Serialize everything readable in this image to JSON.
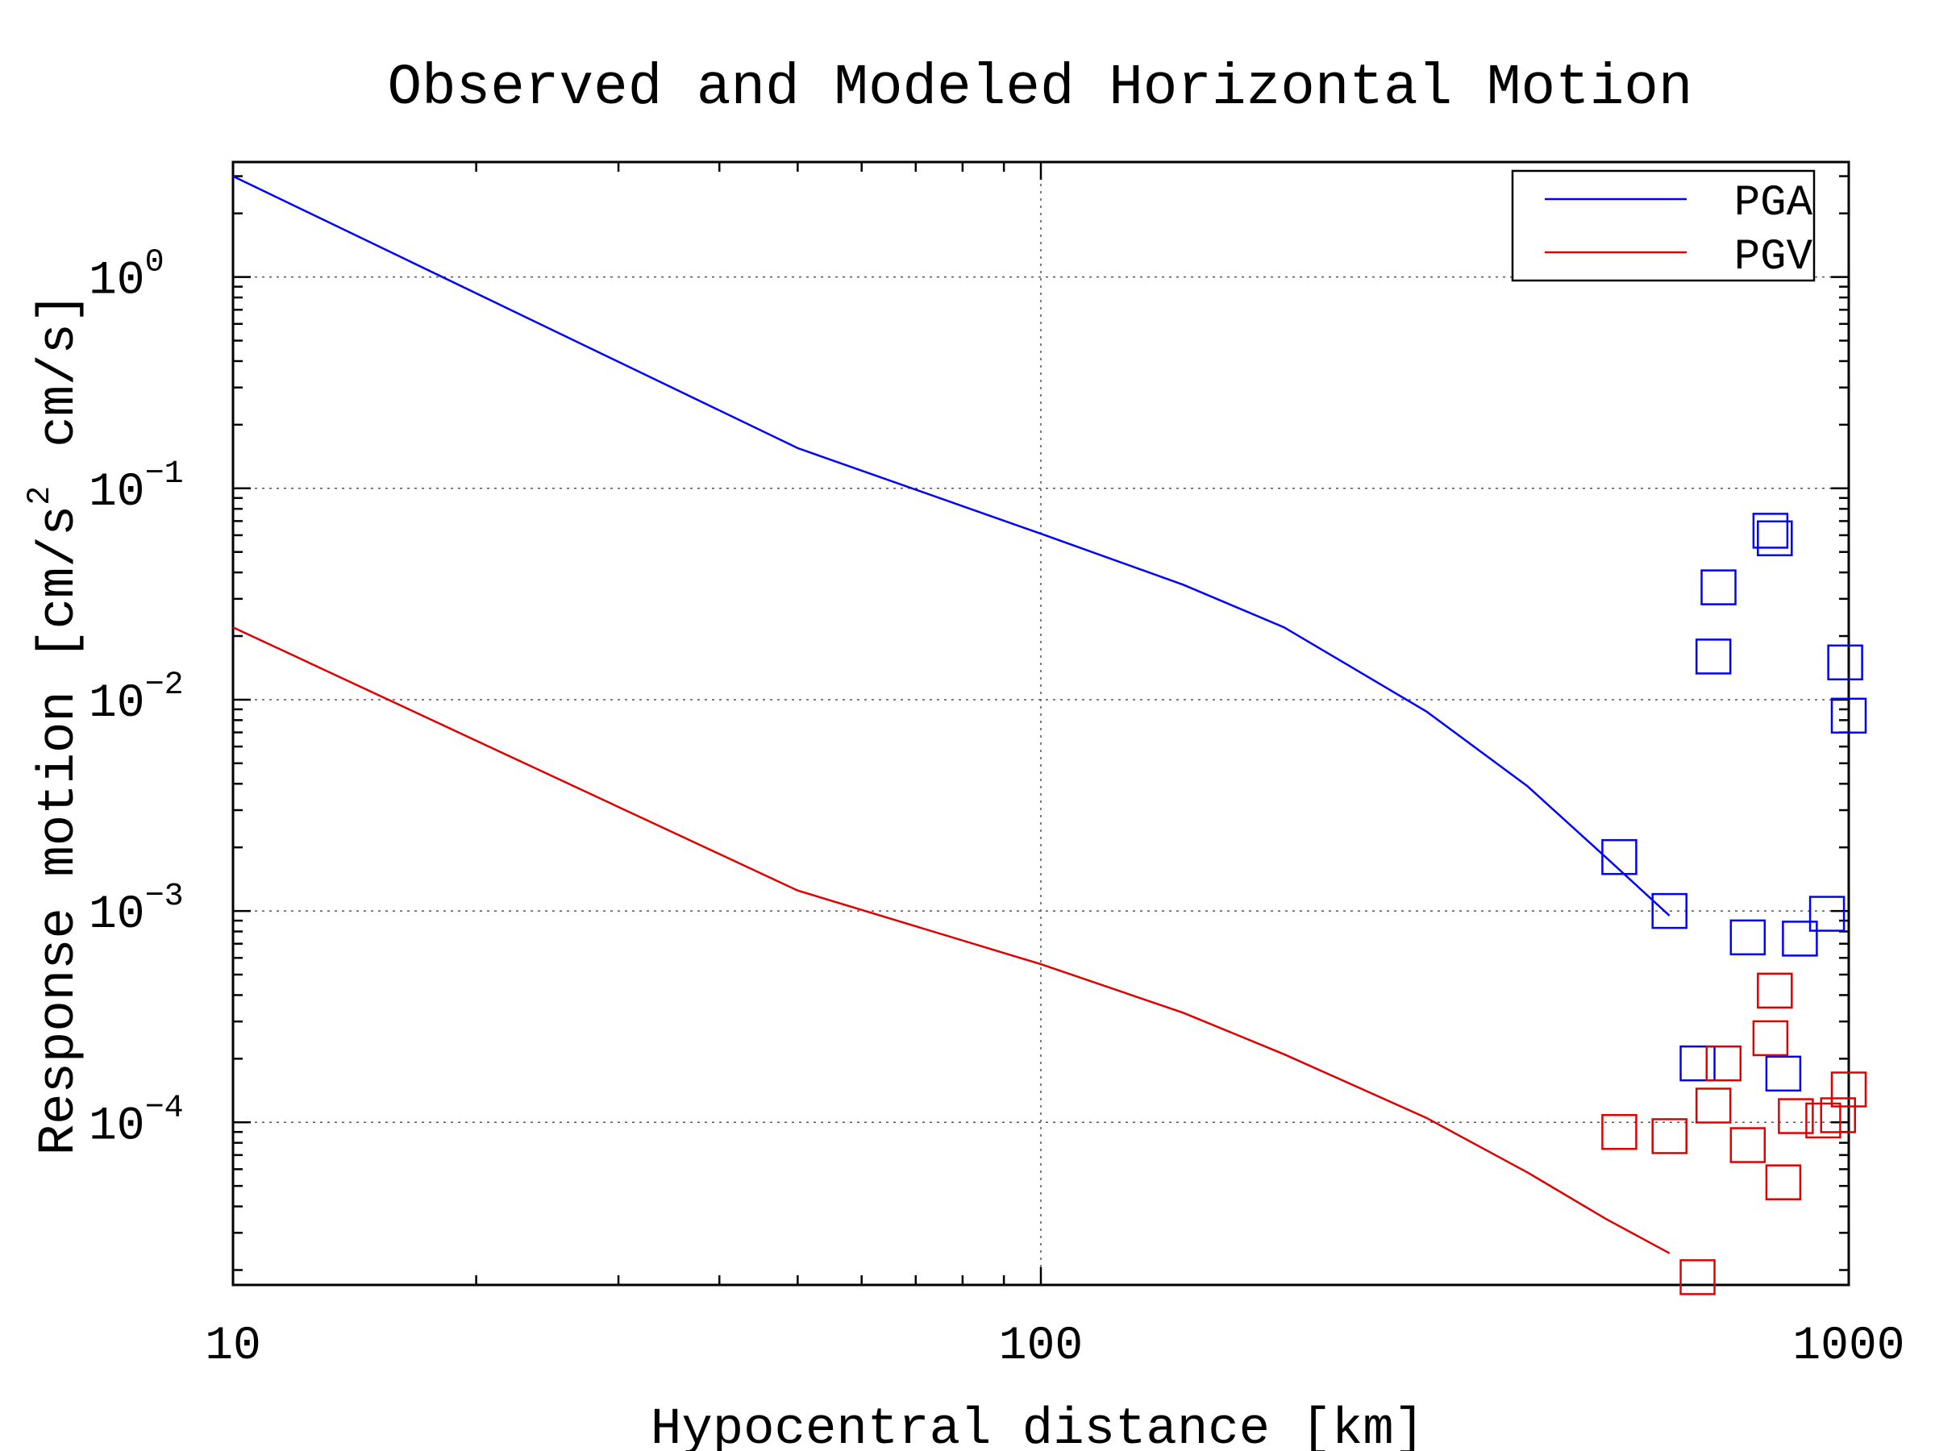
{
  "chart_data": {
    "type": "line",
    "title": "Observed and Modeled Horizontal Motion",
    "xlabel": "Hypocentral distance [km]",
    "ylabel": "Response motion [cm/s",
    "ylabel_exponent": "2",
    "ylabel_tail": "cm/s]",
    "x_scale": "log",
    "y_scale": "log",
    "xlim": [
      10,
      1000
    ],
    "ylim": [
      1.7e-05,
      3.5
    ],
    "x_ticks": [
      {
        "value": 10,
        "label": "10"
      },
      {
        "value": 100,
        "label": "100"
      },
      {
        "value": 1000,
        "label": "1000"
      }
    ],
    "y_ticks": [
      {
        "value": 1,
        "base": "10",
        "exponent": "0"
      },
      {
        "value": 0.1,
        "base": "10",
        "exponent": "−1"
      },
      {
        "value": 0.01,
        "base": "10",
        "exponent": "−2"
      },
      {
        "value": 0.001,
        "base": "10",
        "exponent": "−3"
      },
      {
        "value": 0.0001,
        "base": "10",
        "exponent": "−4"
      }
    ],
    "grid": true,
    "legend_position": "top-right",
    "series": [
      {
        "name": "PGA",
        "color": "#0000ff",
        "line": [
          [
            10,
            3.0
          ],
          [
            50,
            0.155
          ],
          [
            100,
            0.061
          ],
          [
            150,
            0.035
          ],
          [
            200,
            0.022
          ],
          [
            300,
            0.0088
          ],
          [
            400,
            0.0039
          ],
          [
            500,
            0.0018
          ],
          [
            600,
            0.00095
          ]
        ],
        "observed": [
          [
            520,
            0.0018
          ],
          [
            600,
            0.001
          ],
          [
            650,
            0.00019
          ],
          [
            680,
            0.016
          ],
          [
            690,
            0.034
          ],
          [
            750,
            0.00075
          ],
          [
            800,
            0.063
          ],
          [
            810,
            0.058
          ],
          [
            830,
            0.00017
          ],
          [
            870,
            0.00074
          ],
          [
            940,
            0.00097
          ],
          [
            990,
            0.015
          ],
          [
            1000,
            0.0084
          ]
        ]
      },
      {
        "name": "PGV",
        "color": "#e00000",
        "line": [
          [
            10,
            0.022
          ],
          [
            50,
            0.00125
          ],
          [
            100,
            0.00056
          ],
          [
            150,
            0.00033
          ],
          [
            200,
            0.00021
          ],
          [
            300,
            0.000105
          ],
          [
            400,
            5.8e-05
          ],
          [
            500,
            3.5e-05
          ],
          [
            600,
            2.4e-05
          ]
        ],
        "observed": [
          [
            520,
            9e-05
          ],
          [
            600,
            8.6e-05
          ],
          [
            650,
            1.85e-05
          ],
          [
            680,
            0.00012
          ],
          [
            700,
            0.00019
          ],
          [
            750,
            7.8e-05
          ],
          [
            800,
            0.00025
          ],
          [
            810,
            0.00042
          ],
          [
            830,
            5.2e-05
          ],
          [
            860,
            0.000107
          ],
          [
            930,
            0.000102
          ],
          [
            970,
            0.000108
          ],
          [
            1000,
            0.000143
          ]
        ]
      }
    ]
  }
}
